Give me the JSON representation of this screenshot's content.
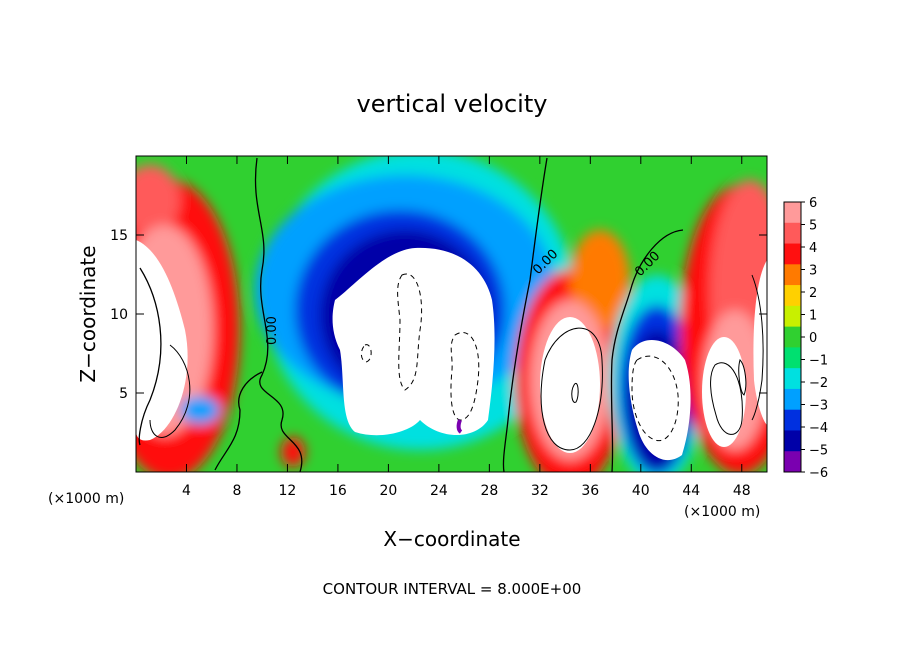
{
  "chart_data": {
    "type": "heatmap",
    "title": "vertical velocity",
    "xlabel": "X−coordinate",
    "ylabel": "Z−coordinate",
    "x_unit_left": "(×1000 m)",
    "x_unit_right": "(×1000 m)",
    "footer": "CONTOUR INTERVAL = 8.000E+00",
    "xlim": [
      0,
      50
    ],
    "ylim": [
      0,
      20
    ],
    "x_ticks": [
      4,
      8,
      12,
      16,
      20,
      24,
      28,
      32,
      36,
      40,
      44,
      48
    ],
    "y_ticks": [
      5,
      10,
      15
    ],
    "colorbar": {
      "ticks": [
        "6",
        "5",
        "4",
        "3",
        "2",
        "1",
        "0",
        "−1",
        "−2",
        "−3",
        "−4",
        "−5",
        "−6"
      ],
      "colors": [
        "#ff9a9a",
        "#ff5a5a",
        "#ff1010",
        "#ff7a00",
        "#ffd000",
        "#c8f000",
        "#30d030",
        "#00e070",
        "#00e0e0",
        "#00a0ff",
        "#0030e0",
        "#0000a8",
        "#7a00b0"
      ]
    },
    "contour_labels": [
      "0.00",
      "0.00",
      "0.00"
    ]
  }
}
